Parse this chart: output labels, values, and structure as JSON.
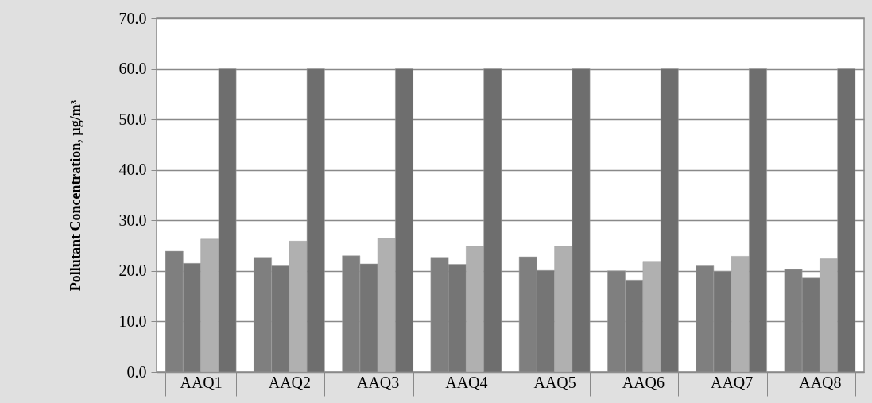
{
  "chart_data": {
    "type": "bar",
    "ylabel": "Pollutant Concentration, µg/m³",
    "categories": [
      "AAQ1",
      "AAQ2",
      "AAQ3",
      "AAQ4",
      "AAQ5",
      "AAQ6",
      "AAQ7",
      "AAQ8"
    ],
    "series": [
      {
        "color": "#7f7f7f",
        "values": [
          23.9,
          22.7,
          23.0,
          22.7,
          22.8,
          20.0,
          21.0,
          20.3
        ]
      },
      {
        "color": "#757575",
        "values": [
          21.5,
          21.0,
          21.4,
          21.3,
          20.1,
          18.2,
          19.9,
          18.6
        ]
      },
      {
        "color": "#b0b0b0",
        "values": [
          26.3,
          25.9,
          26.5,
          24.9,
          24.9,
          21.9,
          22.9,
          22.4
        ]
      },
      {
        "color": "#6e6e6e",
        "values": [
          60,
          60,
          60,
          60,
          60,
          60,
          60,
          60
        ]
      }
    ],
    "ylim": [
      0,
      70
    ],
    "yticks": [
      {
        "value": 0,
        "label": "0.0"
      },
      {
        "value": 10,
        "label": "10.0"
      },
      {
        "value": 20,
        "label": "20.0"
      },
      {
        "value": 30,
        "label": "30.0"
      },
      {
        "value": 40,
        "label": "40.0"
      },
      {
        "value": 50,
        "label": "50.0"
      },
      {
        "value": 60,
        "label": "60.0"
      },
      {
        "value": 70,
        "label": "70.0"
      }
    ],
    "grid": "y",
    "legend": false
  }
}
